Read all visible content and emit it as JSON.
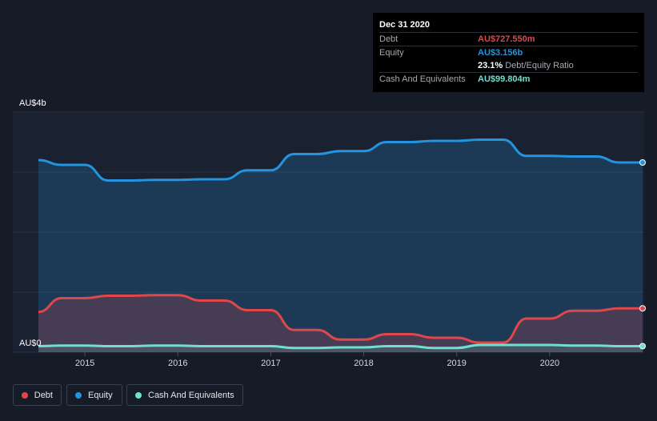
{
  "tooltip": {
    "date": "Dec 31 2020",
    "rows": [
      {
        "label": "Debt",
        "value": "AU$727.550m",
        "color": "#e0474c"
      },
      {
        "label": "Equity",
        "value": "AU$3.156b",
        "color": "#2394df"
      },
      {
        "label": "",
        "value": "23.1%",
        "suffix": "Debt/Equity Ratio",
        "color": "#ffffff"
      },
      {
        "label": "Cash And Equivalents",
        "value": "AU$99.804m",
        "color": "#6ee0cf"
      }
    ]
  },
  "legend": [
    {
      "label": "Debt",
      "color": "#e0474c"
    },
    {
      "label": "Equity",
      "color": "#2394df"
    },
    {
      "label": "Cash And Equivalents",
      "color": "#6ee0cf"
    }
  ],
  "chart_data": {
    "type": "area",
    "ylabel_top": "AU$4b",
    "ylabel_bottom": "AU$0",
    "ylim": [
      0,
      4.0
    ],
    "xlim": [
      2014.5,
      2021.0
    ],
    "x_ticks": [
      2015,
      2016,
      2017,
      2018,
      2019,
      2020
    ],
    "x_tick_labels": [
      "2015",
      "2016",
      "2017",
      "2018",
      "2019",
      "2020"
    ],
    "grid": true,
    "series": [
      {
        "name": "Equity",
        "color": "#2394df",
        "x": [
          2014.5,
          2014.75,
          2015.0,
          2015.25,
          2015.5,
          2015.75,
          2016.0,
          2016.25,
          2016.5,
          2016.75,
          2017.0,
          2017.25,
          2017.5,
          2017.75,
          2018.0,
          2018.25,
          2018.5,
          2018.75,
          2019.0,
          2019.25,
          2019.5,
          2019.75,
          2020.0,
          2020.25,
          2020.5,
          2020.75,
          2021.0
        ],
        "values": [
          3.2,
          3.12,
          3.12,
          2.86,
          2.86,
          2.87,
          2.87,
          2.88,
          2.88,
          3.03,
          3.03,
          3.3,
          3.3,
          3.35,
          3.35,
          3.5,
          3.5,
          3.52,
          3.52,
          3.54,
          3.54,
          3.27,
          3.27,
          3.26,
          3.26,
          3.16,
          3.16
        ]
      },
      {
        "name": "Debt",
        "color": "#e0474c",
        "x": [
          2014.5,
          2014.75,
          2015.0,
          2015.25,
          2015.5,
          2015.75,
          2016.0,
          2016.25,
          2016.5,
          2016.75,
          2017.0,
          2017.25,
          2017.5,
          2017.75,
          2018.0,
          2018.25,
          2018.5,
          2018.75,
          2019.0,
          2019.25,
          2019.5,
          2019.75,
          2020.0,
          2020.25,
          2020.5,
          2020.75,
          2021.0
        ],
        "values": [
          0.67,
          0.9,
          0.9,
          0.94,
          0.94,
          0.95,
          0.95,
          0.86,
          0.86,
          0.7,
          0.7,
          0.37,
          0.37,
          0.21,
          0.21,
          0.3,
          0.3,
          0.24,
          0.24,
          0.16,
          0.16,
          0.56,
          0.56,
          0.69,
          0.69,
          0.73,
          0.73
        ]
      },
      {
        "name": "Cash And Equivalents",
        "color": "#6ee0cf",
        "x": [
          2014.5,
          2014.75,
          2015.0,
          2015.25,
          2015.5,
          2015.75,
          2016.0,
          2016.25,
          2016.5,
          2016.75,
          2017.0,
          2017.25,
          2017.5,
          2017.75,
          2018.0,
          2018.25,
          2018.5,
          2018.75,
          2019.0,
          2019.25,
          2019.5,
          2019.75,
          2020.0,
          2020.25,
          2020.5,
          2020.75,
          2021.0
        ],
        "values": [
          0.1,
          0.11,
          0.11,
          0.1,
          0.1,
          0.11,
          0.11,
          0.1,
          0.1,
          0.1,
          0.1,
          0.07,
          0.07,
          0.08,
          0.08,
          0.1,
          0.1,
          0.07,
          0.07,
          0.12,
          0.12,
          0.12,
          0.12,
          0.11,
          0.11,
          0.1,
          0.1
        ]
      }
    ]
  }
}
